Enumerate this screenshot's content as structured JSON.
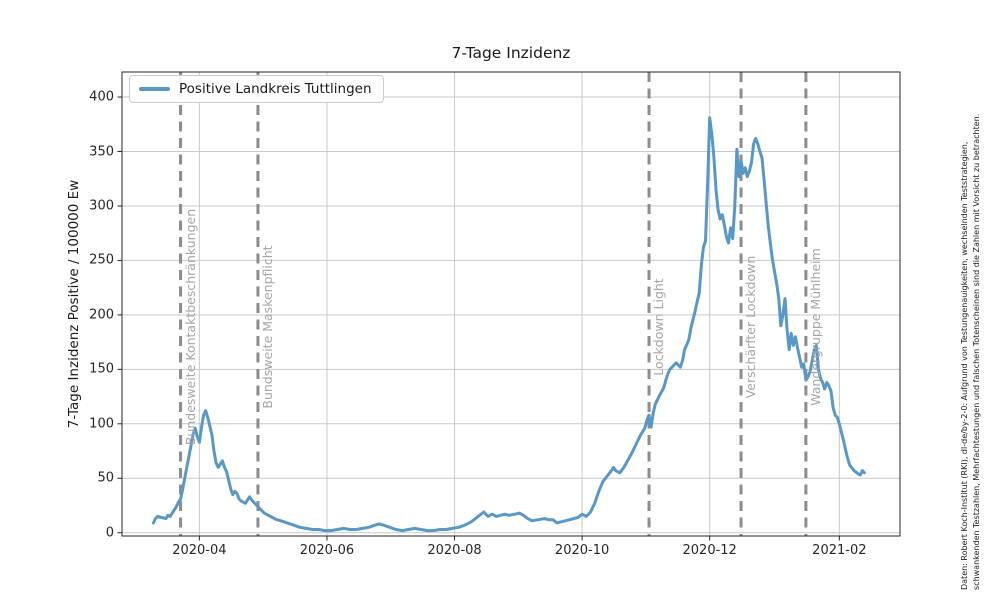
{
  "attribution": {
    "line1": "Daten: Robert Koch-Institut (RKI), dl-de/by-2-0: Aufgrund von Testungenauigkeiten, wechselnden Teststrategien,",
    "line2": "schwankenden Testzahlen, Mehrfachtestungen und falschen Totenscheinen sind die Zahlen mit Vorsicht zu betrachten."
  },
  "colors": {
    "series_blue": "#5898c8",
    "event_line_gray": "#8c8c8c",
    "event_label_gray": "#a5a5a5",
    "grid_gray": "#c9c9c9",
    "spine_black": "#262626"
  },
  "chart_data": {
    "type": "line",
    "title": "7-Tage Inzidenz",
    "xlabel": "",
    "ylabel": "7-Tage Inzidenz Positive / 100000 Ew",
    "grid": true,
    "legend_position": "upper left",
    "xlim": [
      "2020-02-24",
      "2021-03-02"
    ],
    "ylim": [
      -3,
      423
    ],
    "x_ticks": [
      "2020-04",
      "2020-06",
      "2020-08",
      "2020-10",
      "2020-12",
      "2021-02"
    ],
    "y_ticks": [
      0,
      50,
      100,
      150,
      200,
      250,
      300,
      350,
      400
    ],
    "events": [
      {
        "label": "Bundesweite Kontaktbeschränkungen",
        "date": "2020-03-23"
      },
      {
        "label": "Bundsweite Maskenpflicht",
        "date": "2020-04-29"
      },
      {
        "label": "Lockdown Light",
        "date": "2020-11-02"
      },
      {
        "label": "Verschärfter Lockdown",
        "date": "2020-12-16"
      },
      {
        "label": "Wandergruppe Mühlheim",
        "date": "2021-01-16"
      }
    ],
    "series": [
      {
        "name": "Positive Landkreis Tuttlingen",
        "color": "#5898c8",
        "points": [
          [
            "2020-03-10",
            9
          ],
          [
            "2020-03-11",
            13
          ],
          [
            "2020-03-12",
            15
          ],
          [
            "2020-03-14",
            14
          ],
          [
            "2020-03-16",
            13
          ],
          [
            "2020-03-17",
            16
          ],
          [
            "2020-03-18",
            15
          ],
          [
            "2020-03-20",
            21
          ],
          [
            "2020-03-21",
            24
          ],
          [
            "2020-03-22",
            28
          ],
          [
            "2020-03-23",
            31
          ],
          [
            "2020-03-24",
            40
          ],
          [
            "2020-03-25",
            50
          ],
          [
            "2020-03-26",
            60
          ],
          [
            "2020-03-27",
            70
          ],
          [
            "2020-03-28",
            80
          ],
          [
            "2020-03-29",
            90
          ],
          [
            "2020-03-30",
            96
          ],
          [
            "2020-03-31",
            88
          ],
          [
            "2020-04-01",
            83
          ],
          [
            "2020-04-02",
            97
          ],
          [
            "2020-04-03",
            108
          ],
          [
            "2020-04-04",
            112
          ],
          [
            "2020-04-05",
            106
          ],
          [
            "2020-04-06",
            98
          ],
          [
            "2020-04-07",
            90
          ],
          [
            "2020-04-08",
            75
          ],
          [
            "2020-04-09",
            64
          ],
          [
            "2020-04-10",
            60
          ],
          [
            "2020-04-11",
            63
          ],
          [
            "2020-04-12",
            66
          ],
          [
            "2020-04-13",
            60
          ],
          [
            "2020-04-14",
            56
          ],
          [
            "2020-04-15",
            48
          ],
          [
            "2020-04-16",
            40
          ],
          [
            "2020-04-17",
            35
          ],
          [
            "2020-04-18",
            38
          ],
          [
            "2020-04-19",
            36
          ],
          [
            "2020-04-20",
            31
          ],
          [
            "2020-04-21",
            29
          ],
          [
            "2020-04-23",
            27
          ],
          [
            "2020-04-24",
            30
          ],
          [
            "2020-04-25",
            33
          ],
          [
            "2020-04-26",
            30
          ],
          [
            "2020-04-28",
            26
          ],
          [
            "2020-04-30",
            22
          ],
          [
            "2020-05-02",
            18
          ],
          [
            "2020-05-04",
            16
          ],
          [
            "2020-05-06",
            14
          ],
          [
            "2020-05-08",
            12
          ],
          [
            "2020-05-10",
            11
          ],
          [
            "2020-05-13",
            9
          ],
          [
            "2020-05-16",
            7
          ],
          [
            "2020-05-19",
            5
          ],
          [
            "2020-05-22",
            4
          ],
          [
            "2020-05-25",
            3
          ],
          [
            "2020-05-28",
            3
          ],
          [
            "2020-05-31",
            2
          ],
          [
            "2020-06-03",
            2
          ],
          [
            "2020-06-06",
            3
          ],
          [
            "2020-06-09",
            4
          ],
          [
            "2020-06-12",
            3
          ],
          [
            "2020-06-15",
            3
          ],
          [
            "2020-06-18",
            4
          ],
          [
            "2020-06-21",
            5
          ],
          [
            "2020-06-24",
            7
          ],
          [
            "2020-06-26",
            8
          ],
          [
            "2020-06-28",
            7
          ],
          [
            "2020-07-01",
            5
          ],
          [
            "2020-07-04",
            3
          ],
          [
            "2020-07-07",
            2
          ],
          [
            "2020-07-10",
            3
          ],
          [
            "2020-07-13",
            4
          ],
          [
            "2020-07-16",
            3
          ],
          [
            "2020-07-19",
            2
          ],
          [
            "2020-07-22",
            2
          ],
          [
            "2020-07-25",
            3
          ],
          [
            "2020-07-28",
            3
          ],
          [
            "2020-07-31",
            4
          ],
          [
            "2020-08-03",
            5
          ],
          [
            "2020-08-06",
            7
          ],
          [
            "2020-08-09",
            10
          ],
          [
            "2020-08-11",
            13
          ],
          [
            "2020-08-13",
            16
          ],
          [
            "2020-08-15",
            19
          ],
          [
            "2020-08-17",
            15
          ],
          [
            "2020-08-19",
            17
          ],
          [
            "2020-08-21",
            15
          ],
          [
            "2020-08-23",
            16
          ],
          [
            "2020-08-25",
            17
          ],
          [
            "2020-08-27",
            16
          ],
          [
            "2020-08-30",
            17
          ],
          [
            "2020-09-01",
            18
          ],
          [
            "2020-09-03",
            16
          ],
          [
            "2020-09-05",
            13
          ],
          [
            "2020-09-07",
            11
          ],
          [
            "2020-09-10",
            12
          ],
          [
            "2020-09-13",
            13
          ],
          [
            "2020-09-15",
            12
          ],
          [
            "2020-09-17",
            12
          ],
          [
            "2020-09-19",
            9
          ],
          [
            "2020-09-21",
            10
          ],
          [
            "2020-09-23",
            11
          ],
          [
            "2020-09-25",
            12
          ],
          [
            "2020-09-27",
            13
          ],
          [
            "2020-09-29",
            14
          ],
          [
            "2020-10-01",
            17
          ],
          [
            "2020-10-03",
            15
          ],
          [
            "2020-10-05",
            19
          ],
          [
            "2020-10-07",
            27
          ],
          [
            "2020-10-09",
            38
          ],
          [
            "2020-10-11",
            47
          ],
          [
            "2020-10-13",
            52
          ],
          [
            "2020-10-15",
            57
          ],
          [
            "2020-10-16",
            60
          ],
          [
            "2020-10-17",
            57
          ],
          [
            "2020-10-19",
            55
          ],
          [
            "2020-10-21",
            60
          ],
          [
            "2020-10-23",
            67
          ],
          [
            "2020-10-25",
            74
          ],
          [
            "2020-10-27",
            82
          ],
          [
            "2020-10-29",
            90
          ],
          [
            "2020-10-31",
            96
          ],
          [
            "2020-11-01",
            103
          ],
          [
            "2020-11-02",
            108
          ],
          [
            "2020-11-03",
            97
          ],
          [
            "2020-11-04",
            110
          ],
          [
            "2020-11-05",
            118
          ],
          [
            "2020-11-07",
            126
          ],
          [
            "2020-11-09",
            133
          ],
          [
            "2020-11-10",
            140
          ],
          [
            "2020-11-11",
            146
          ],
          [
            "2020-11-12",
            150
          ],
          [
            "2020-11-13",
            152
          ],
          [
            "2020-11-15",
            156
          ],
          [
            "2020-11-16",
            154
          ],
          [
            "2020-11-17",
            152
          ],
          [
            "2020-11-18",
            158
          ],
          [
            "2020-11-19",
            168
          ],
          [
            "2020-11-21",
            177
          ],
          [
            "2020-11-22",
            188
          ],
          [
            "2020-11-24",
            203
          ],
          [
            "2020-11-25",
            212
          ],
          [
            "2020-11-26",
            220
          ],
          [
            "2020-11-27",
            245
          ],
          [
            "2020-11-28",
            262
          ],
          [
            "2020-11-29",
            268
          ],
          [
            "2020-11-30",
            320
          ],
          [
            "2020-12-01",
            381
          ],
          [
            "2020-12-02",
            366
          ],
          [
            "2020-12-03",
            345
          ],
          [
            "2020-12-04",
            315
          ],
          [
            "2020-12-05",
            297
          ],
          [
            "2020-12-06",
            288
          ],
          [
            "2020-12-07",
            292
          ],
          [
            "2020-12-08",
            283
          ],
          [
            "2020-12-09",
            272
          ],
          [
            "2020-12-10",
            266
          ],
          [
            "2020-12-11",
            280
          ],
          [
            "2020-12-12",
            270
          ],
          [
            "2020-12-13",
            300
          ],
          [
            "2020-12-14",
            352
          ],
          [
            "2020-12-15",
            327
          ],
          [
            "2020-12-16",
            341
          ],
          [
            "2020-12-17",
            330
          ],
          [
            "2020-12-18",
            335
          ],
          [
            "2020-12-19",
            327
          ],
          [
            "2020-12-20",
            332
          ],
          [
            "2020-12-21",
            340
          ],
          [
            "2020-12-22",
            357
          ],
          [
            "2020-12-23",
            362
          ],
          [
            "2020-12-24",
            357
          ],
          [
            "2020-12-25",
            350
          ],
          [
            "2020-12-26",
            344
          ],
          [
            "2020-12-27",
            324
          ],
          [
            "2020-12-28",
            302
          ],
          [
            "2020-12-29",
            282
          ],
          [
            "2020-12-30",
            266
          ],
          [
            "2020-12-31",
            251
          ],
          [
            "2021-01-01",
            240
          ],
          [
            "2021-01-02",
            229
          ],
          [
            "2021-01-03",
            216
          ],
          [
            "2021-01-04",
            190
          ],
          [
            "2021-01-05",
            200
          ],
          [
            "2021-01-06",
            215
          ],
          [
            "2021-01-07",
            186
          ],
          [
            "2021-01-08",
            168
          ],
          [
            "2021-01-09",
            183
          ],
          [
            "2021-01-10",
            172
          ],
          [
            "2021-01-11",
            180
          ],
          [
            "2021-01-12",
            170
          ],
          [
            "2021-01-13",
            161
          ],
          [
            "2021-01-14",
            152
          ],
          [
            "2021-01-15",
            155
          ],
          [
            "2021-01-16",
            140
          ],
          [
            "2021-01-17",
            143
          ],
          [
            "2021-01-18",
            148
          ],
          [
            "2021-01-19",
            158
          ],
          [
            "2021-01-20",
            168
          ],
          [
            "2021-01-21",
            172
          ],
          [
            "2021-01-22",
            150
          ],
          [
            "2021-01-23",
            142
          ],
          [
            "2021-01-24",
            138
          ],
          [
            "2021-01-25",
            132
          ],
          [
            "2021-01-26",
            138
          ],
          [
            "2021-01-27",
            135
          ],
          [
            "2021-01-28",
            130
          ],
          [
            "2021-01-29",
            115
          ],
          [
            "2021-01-30",
            108
          ],
          [
            "2021-01-31",
            106
          ],
          [
            "2021-02-01",
            100
          ],
          [
            "2021-02-02",
            92
          ],
          [
            "2021-02-03",
            85
          ],
          [
            "2021-02-04",
            76
          ],
          [
            "2021-02-05",
            68
          ],
          [
            "2021-02-06",
            62
          ],
          [
            "2021-02-08",
            57
          ],
          [
            "2021-02-10",
            54
          ],
          [
            "2021-02-11",
            53
          ],
          [
            "2021-02-12",
            57
          ],
          [
            "2021-02-13",
            55
          ]
        ]
      }
    ]
  }
}
